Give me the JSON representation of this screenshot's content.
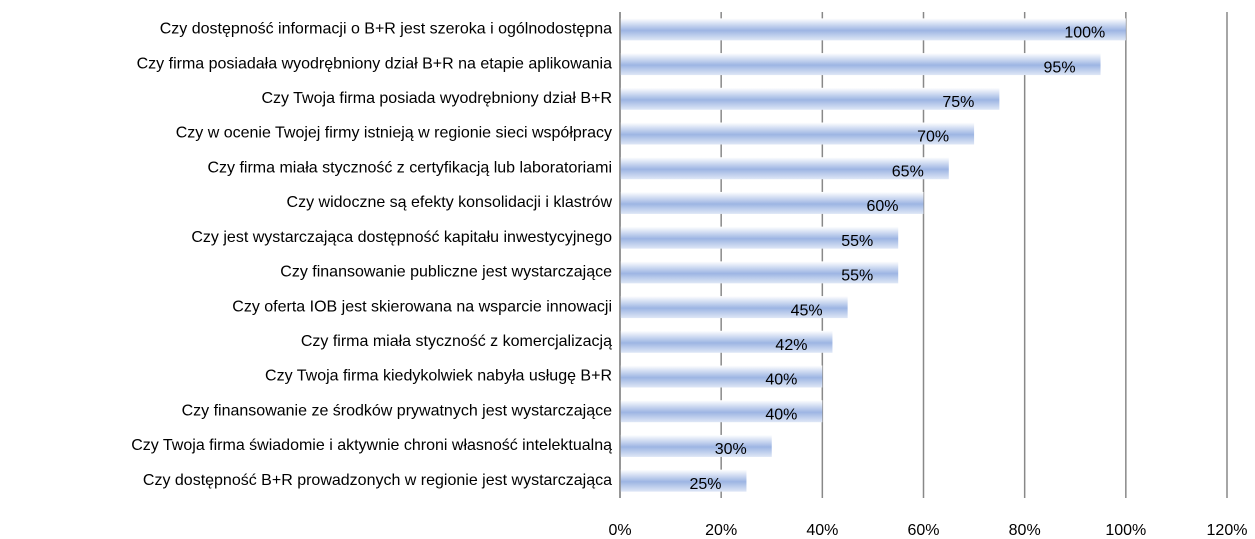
{
  "chart_data": {
    "type": "bar",
    "orientation": "horizontal",
    "categories": [
      "Czy dostępność informacji o B+R jest szeroka i ogólnodostępna",
      "Czy firma posiadała wyodrębniony dział B+R na etapie aplikowania",
      "Czy Twoja firma posiada wyodrębniony dział B+R",
      "Czy w ocenie Twojej firmy istnieją w regionie sieci współpracy",
      "Czy firma miała styczność z certyfikacją lub laboratoriami",
      "Czy widoczne są efekty konsolidacji i klastrów",
      "Czy jest wystarczająca dostępność kapitału inwestycyjnego",
      "Czy finansowanie publiczne jest wystarczające",
      "Czy oferta IOB jest skierowana na wsparcie innowacji",
      "Czy firma miała styczność z komercjalizacją",
      "Czy Twoja firma kiedykolwiek nabyła usługę B+R",
      "Czy finansowanie ze środków prywatnych jest wystarczające",
      "Czy Twoja firma świadomie i aktywnie chroni własność intelektualną",
      "Czy dostępność B+R prowadzonych w regionie jest wystarczająca"
    ],
    "values": [
      100,
      95,
      75,
      70,
      65,
      60,
      55,
      55,
      45,
      42,
      40,
      40,
      30,
      25
    ],
    "value_labels": [
      "100%",
      "95%",
      "75%",
      "70%",
      "65%",
      "60%",
      "55%",
      "55%",
      "45%",
      "42%",
      "40%",
      "40%",
      "30%",
      "25%"
    ],
    "color": "#9db5e3",
    "xlim": [
      0,
      120
    ],
    "xticks": [
      {
        "value": 0,
        "label": "0%"
      },
      {
        "value": 20,
        "label": "20%"
      },
      {
        "value": 40,
        "label": "40%"
      },
      {
        "value": 60,
        "label": "60%"
      },
      {
        "value": 80,
        "label": "80%"
      },
      {
        "value": 100,
        "label": "100%"
      },
      {
        "value": 120,
        "label": "120%"
      }
    ],
    "grid": true
  }
}
